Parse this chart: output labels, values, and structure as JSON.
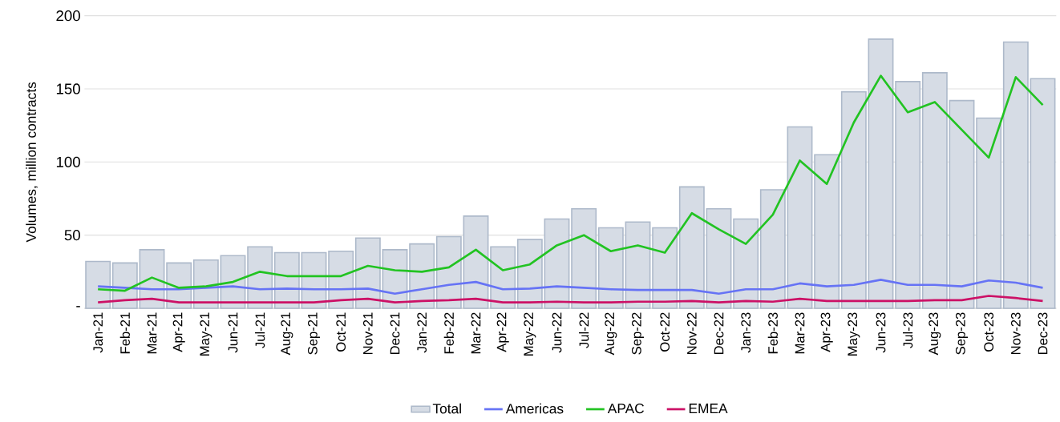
{
  "chart_data": {
    "type": "bar",
    "ylabel": "Volumes, million contracts",
    "categories": [
      "Jan-21",
      "Feb-21",
      "Mar-21",
      "Apr-21",
      "May-21",
      "Jun-21",
      "Jul-21",
      "Aug-21",
      "Sep-21",
      "Oct-21",
      "Nov-21",
      "Dec-21",
      "Jan-22",
      "Feb-22",
      "Mar-22",
      "Apr-22",
      "May-22",
      "Jun-22",
      "Jul-22",
      "Aug-22",
      "Sep-22",
      "Oct-22",
      "Nov-22",
      "Dec-22",
      "Jan-23",
      "Feb-23",
      "Mar-23",
      "Apr-23",
      "May-23",
      "Jun-23",
      "Jul-23",
      "Aug-23",
      "Sep-23",
      "Oct-23",
      "Nov-23",
      "Dec-23"
    ],
    "series": [
      {
        "name": "Total",
        "color": "#d6dce5",
        "values": [
          32,
          31,
          40,
          31,
          33,
          36,
          42,
          38,
          38,
          39,
          48,
          40,
          44,
          49,
          63,
          42,
          47,
          61,
          68,
          55,
          59,
          55,
          83,
          68,
          61,
          81,
          124,
          105,
          148,
          184,
          155,
          161,
          142,
          130,
          182,
          157
        ]
      },
      {
        "name": "Americas",
        "type": "line",
        "color": "#6673f5",
        "values": [
          15,
          14,
          13,
          13,
          14,
          15,
          13,
          13.5,
          13,
          13,
          13.5,
          10,
          13,
          16,
          18,
          13,
          13.5,
          15,
          14,
          13,
          12.5,
          12.5,
          12.5,
          10,
          13,
          13,
          17,
          15,
          16,
          19.5,
          16,
          16,
          15,
          19,
          17.5,
          14
        ]
      },
      {
        "name": "APAC",
        "type": "line",
        "color": "#22c322",
        "values": [
          13,
          12,
          21,
          14,
          15,
          18,
          25,
          22,
          22,
          22,
          29,
          26,
          25,
          28,
          40,
          26,
          30,
          43,
          50,
          39,
          43,
          38,
          65,
          54,
          44,
          64,
          101,
          85,
          127,
          159,
          134,
          141,
          122,
          103,
          158,
          139
        ]
      },
      {
        "name": "EMEA",
        "type": "line",
        "color": "#cc1166",
        "values": [
          4,
          5.5,
          6.5,
          4,
          4,
          4,
          4,
          4,
          4,
          5.5,
          6.5,
          4,
          5,
          5.5,
          6.5,
          4,
          4,
          4.5,
          4,
          4,
          4.5,
          4.5,
          5,
          4,
          5,
          4.5,
          6.5,
          5,
          5,
          5,
          5,
          5.5,
          5.5,
          8.5,
          7,
          5
        ]
      }
    ],
    "ylim": [
      0,
      200
    ],
    "yticks": [
      {
        "value": 0,
        "label": "-"
      },
      50,
      100,
      150,
      200
    ],
    "grid": "y",
    "legend": "bottom"
  }
}
